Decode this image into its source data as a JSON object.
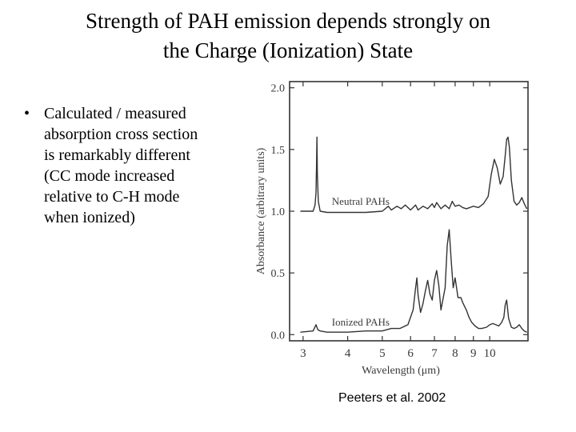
{
  "slide": {
    "title_line1": "Strength of PAH emission depends strongly on",
    "title_line2": "the Charge (Ionization) State",
    "bullet_symbol": "•",
    "bullet_lines": [
      "Calculated / measured",
      "absorption cross section",
      "is remarkably different",
      "(CC mode increased",
      "relative to C-H mode",
      "when ionized)"
    ],
    "citation": "Peeters et al. 2002"
  },
  "chart_data": {
    "type": "line",
    "xlabel": "Wavelength (μm)",
    "ylabel": "Absorbance (arbitrary units)",
    "x_scale": "log",
    "xlim": [
      2.75,
      12.8
    ],
    "ylim": [
      -0.05,
      2.05
    ],
    "x_ticks": [
      3,
      4,
      5,
      6,
      7,
      8,
      9,
      10
    ],
    "x_tick_labels": [
      "3",
      "4",
      "5",
      "6",
      "7",
      "8",
      "9",
      "10"
    ],
    "y_ticks": [
      0.0,
      0.5,
      1.0,
      1.5,
      2.0
    ],
    "y_tick_labels": [
      "0.0",
      "0.5",
      "1.0",
      "1.5",
      "2.0"
    ],
    "grid": false,
    "line_color": "#333333",
    "series": [
      {
        "name": "Neutral PAHs",
        "x": [
          2.95,
          3.2,
          3.24,
          3.26,
          3.27,
          3.28,
          3.29,
          3.31,
          3.35,
          3.5,
          4.0,
          4.5,
          5.0,
          5.2,
          5.3,
          5.5,
          5.65,
          5.8,
          6.0,
          6.1,
          6.2,
          6.3,
          6.5,
          6.7,
          6.9,
          7.0,
          7.1,
          7.3,
          7.5,
          7.7,
          7.85,
          8.0,
          8.2,
          8.4,
          8.6,
          8.8,
          9.0,
          9.3,
          9.6,
          9.9,
          10.1,
          10.3,
          10.5,
          10.7,
          10.9,
          11.05,
          11.15,
          11.25,
          11.35,
          11.5,
          11.7,
          11.9,
          12.1,
          12.3,
          12.5,
          12.7
        ],
        "y": [
          1.0,
          1.0,
          1.05,
          1.15,
          1.35,
          1.6,
          1.3,
          1.08,
          1.0,
          0.99,
          0.99,
          0.99,
          1.0,
          1.04,
          1.01,
          1.04,
          1.02,
          1.05,
          1.01,
          1.03,
          1.05,
          1.01,
          1.04,
          1.02,
          1.06,
          1.03,
          1.07,
          1.02,
          1.05,
          1.02,
          1.08,
          1.04,
          1.05,
          1.03,
          1.02,
          1.03,
          1.04,
          1.03,
          1.06,
          1.12,
          1.3,
          1.42,
          1.35,
          1.22,
          1.28,
          1.45,
          1.58,
          1.6,
          1.52,
          1.25,
          1.08,
          1.05,
          1.07,
          1.11,
          1.06,
          1.02
        ]
      },
      {
        "name": "Ionized PAHs",
        "x": [
          2.95,
          3.2,
          3.26,
          3.3,
          3.35,
          3.5,
          4.0,
          4.5,
          5.0,
          5.3,
          5.6,
          5.9,
          6.1,
          6.2,
          6.25,
          6.3,
          6.4,
          6.5,
          6.6,
          6.7,
          6.8,
          6.9,
          7.0,
          7.1,
          7.2,
          7.3,
          7.5,
          7.6,
          7.7,
          7.8,
          7.9,
          8.0,
          8.15,
          8.3,
          8.4,
          8.6,
          8.75,
          8.9,
          9.1,
          9.3,
          9.5,
          9.8,
          10.0,
          10.2,
          10.4,
          10.6,
          10.8,
          10.95,
          11.05,
          11.15,
          11.3,
          11.5,
          11.7,
          11.9,
          12.1,
          12.3,
          12.5,
          12.7
        ],
        "y": [
          0.02,
          0.03,
          0.08,
          0.04,
          0.03,
          0.02,
          0.02,
          0.03,
          0.03,
          0.05,
          0.05,
          0.08,
          0.2,
          0.38,
          0.46,
          0.32,
          0.18,
          0.25,
          0.35,
          0.44,
          0.33,
          0.28,
          0.44,
          0.52,
          0.4,
          0.2,
          0.38,
          0.72,
          0.85,
          0.6,
          0.38,
          0.46,
          0.3,
          0.3,
          0.26,
          0.2,
          0.14,
          0.1,
          0.07,
          0.05,
          0.05,
          0.06,
          0.08,
          0.09,
          0.08,
          0.07,
          0.1,
          0.14,
          0.24,
          0.28,
          0.13,
          0.06,
          0.05,
          0.06,
          0.08,
          0.05,
          0.03,
          0.02
        ]
      }
    ]
  }
}
